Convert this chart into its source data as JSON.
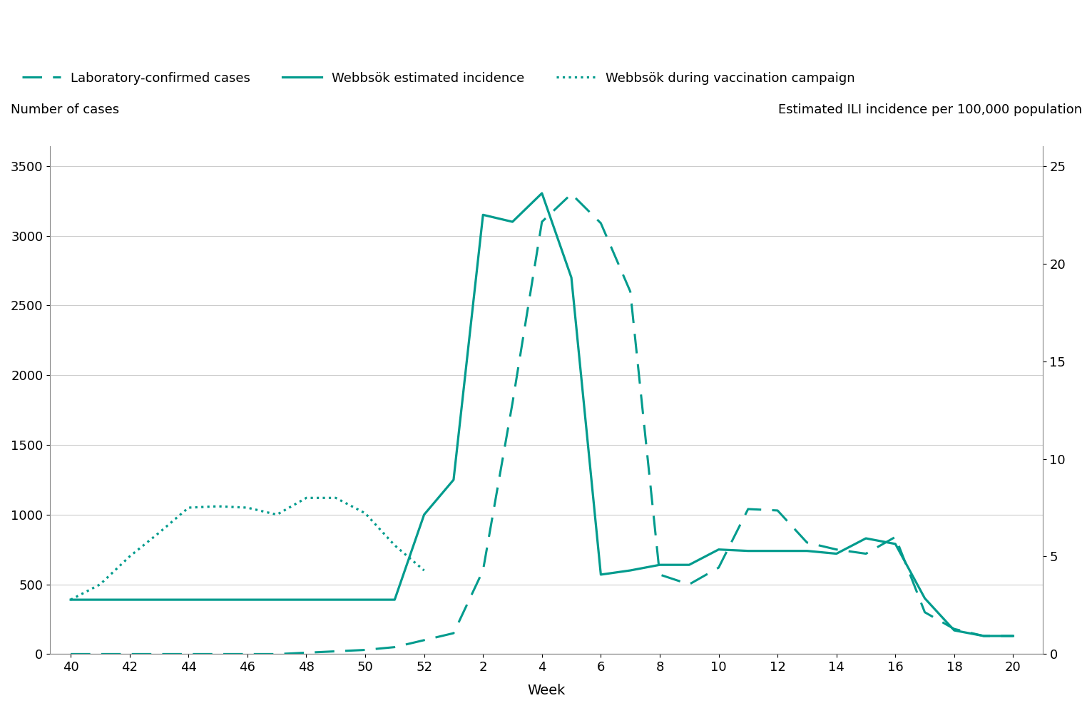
{
  "title_left": "Number of cases",
  "title_right": "Estimated ILI incidence per 100,000 population",
  "xlabel": "Week",
  "color": "#009b8d",
  "legend": [
    "Laboratory-confirmed cases",
    "Webbsök estimated incidence",
    "Webbsök during vaccination campaign"
  ],
  "x_tick_labels": [
    "40",
    "42",
    "44",
    "46",
    "48",
    "50",
    "52",
    "2",
    "4",
    "6",
    "8",
    "10",
    "12",
    "14",
    "16",
    "18",
    "20"
  ],
  "x_tick_positions": [
    0,
    2,
    4,
    6,
    8,
    10,
    12,
    14,
    16,
    18,
    20,
    22,
    24,
    26,
    28,
    30,
    32
  ],
  "xlim": [
    -0.7,
    33
  ],
  "ylim_left": [
    0,
    3640
  ],
  "ylim_right": [
    0,
    26
  ],
  "yticks_left": [
    0,
    500,
    1000,
    1500,
    2000,
    2500,
    3000,
    3500
  ],
  "yticks_right": [
    0,
    5,
    10,
    15,
    20,
    25
  ],
  "cases_x": [
    0,
    1,
    2,
    3,
    4,
    5,
    6,
    7,
    8,
    9,
    10,
    11,
    12,
    13,
    14,
    15,
    16,
    17,
    18,
    19,
    20,
    21,
    22,
    23,
    24,
    25,
    26,
    27,
    28,
    29,
    30,
    31,
    32
  ],
  "cases_y": [
    0,
    0,
    0,
    0,
    0,
    0,
    0,
    0,
    10,
    20,
    30,
    50,
    100,
    150,
    600,
    1800,
    3100,
    3300,
    3090,
    2600,
    570,
    500,
    620,
    1040,
    1030,
    800,
    750,
    720,
    840,
    300,
    180,
    130,
    130
  ],
  "webbsok_x": [
    0,
    1,
    2,
    3,
    4,
    5,
    6,
    7,
    8,
    9,
    10,
    11,
    12,
    13,
    14,
    15,
    16,
    17,
    18,
    19,
    20,
    21,
    22,
    23,
    24,
    25,
    26,
    27,
    28,
    29,
    30,
    31,
    32
  ],
  "webbsok_y_left": [
    390,
    390,
    390,
    390,
    390,
    390,
    390,
    390,
    390,
    390,
    390,
    390,
    1000,
    1250,
    3150,
    3100,
    3305,
    2700,
    570,
    600,
    640,
    640,
    750,
    740,
    740,
    740,
    720,
    830,
    790,
    400,
    170,
    130,
    130
  ],
  "dotted_x": [
    0,
    1,
    2,
    3,
    4,
    5,
    6,
    7,
    8,
    9,
    10,
    11,
    12
  ],
  "dotted_y_left": [
    390,
    500,
    700,
    870,
    1050,
    1060,
    1050,
    1000,
    1120,
    1120,
    1010,
    780,
    600
  ]
}
